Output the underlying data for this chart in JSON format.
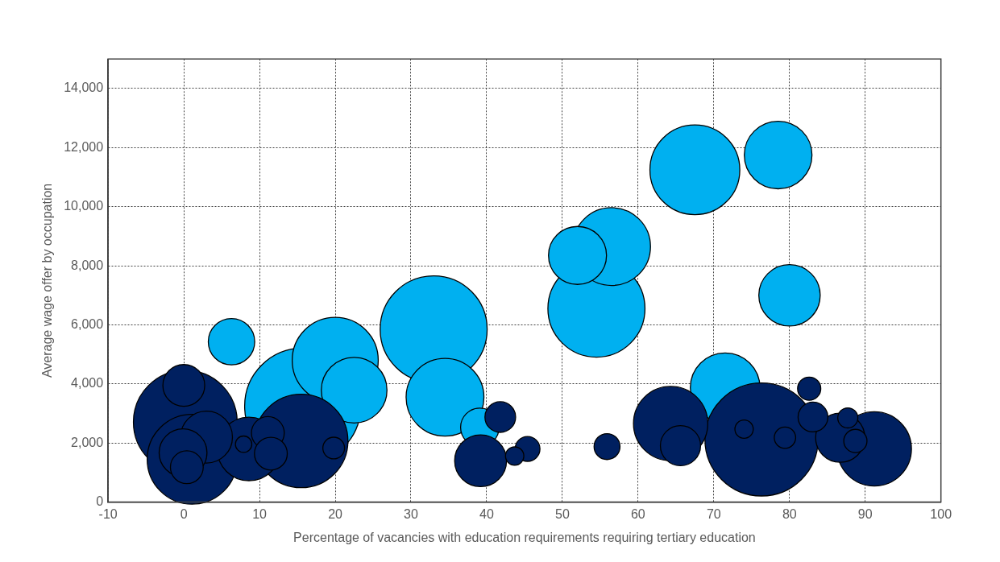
{
  "chart_data": {
    "type": "bubble",
    "xlabel": "Percentage of vacancies with education requirements requiring tertiary education",
    "ylabel": "Average wage offer by occupation",
    "xlim": [
      -10,
      100
    ],
    "xticks": [
      -10,
      0,
      10,
      20,
      30,
      40,
      50,
      60,
      70,
      80,
      90,
      100
    ],
    "ylim": [
      0,
      15000
    ],
    "yticks": [
      0,
      {
        "value": 2000,
        "label": "2,000"
      },
      {
        "value": 4000,
        "label": "4,000"
      },
      {
        "value": 6000,
        "label": "6,000"
      },
      {
        "value": 8000,
        "label": "8,000"
      },
      {
        "value": 10000,
        "label": "10,000"
      },
      {
        "value": 12000,
        "label": "12,000"
      },
      {
        "value": 14000,
        "label": "14,000"
      }
    ],
    "grid": true,
    "legend": false,
    "series": [
      {
        "color": "#00b0f0",
        "x": [
          15.7,
          33,
          54.5,
          67.5,
          20,
          56.5,
          34.5,
          71.5,
          78.5,
          22.5,
          80,
          52,
          6.3,
          39.1
        ],
        "values": [
          3250,
          5850,
          6550,
          11250,
          4800,
          8650,
          3550,
          3870,
          11750,
          3790,
          7000,
          8350,
          5430,
          2530
        ],
        "sizes": [
          1,
          0.85,
          0.7,
          0.6,
          0.55,
          0.45,
          0.45,
          0.36,
          0.34,
          0.32,
          0.28,
          0.25,
          0.16,
          0.11
        ]
      },
      {
        "color": "#002060",
        "x": [
          76.3,
          0.2,
          15.5,
          1.1,
          64.3,
          91.2,
          8.6,
          3.0,
          39.2,
          86.7,
          -0.1,
          0.0,
          65.6,
          0.4,
          11.1,
          11.5,
          41.8,
          83.1,
          55.9,
          45.4,
          82.6,
          88.7,
          19.8,
          79.4,
          87.7,
          74.0,
          43.7,
          7.9
        ],
        "values": [
          2120,
          2710,
          2070,
          1450,
          2660,
          1800,
          1800,
          2200,
          1400,
          2180,
          1670,
          3950,
          1910,
          1180,
          2340,
          1640,
          2880,
          2880,
          1880,
          1800,
          3840,
          2070,
          1830,
          2180,
          2850,
          2470,
          1560,
          1960
        ],
        "sizes": [
          0.95,
          0.8,
          0.65,
          0.6,
          0.41,
          0.41,
          0.3,
          0.2,
          0.2,
          0.18,
          0.17,
          0.13,
          0.12,
          0.08,
          0.08,
          0.08,
          0.07,
          0.066,
          0.05,
          0.046,
          0.04,
          0.04,
          0.035,
          0.034,
          0.03,
          0.025,
          0.025,
          0.02
        ]
      }
    ]
  }
}
